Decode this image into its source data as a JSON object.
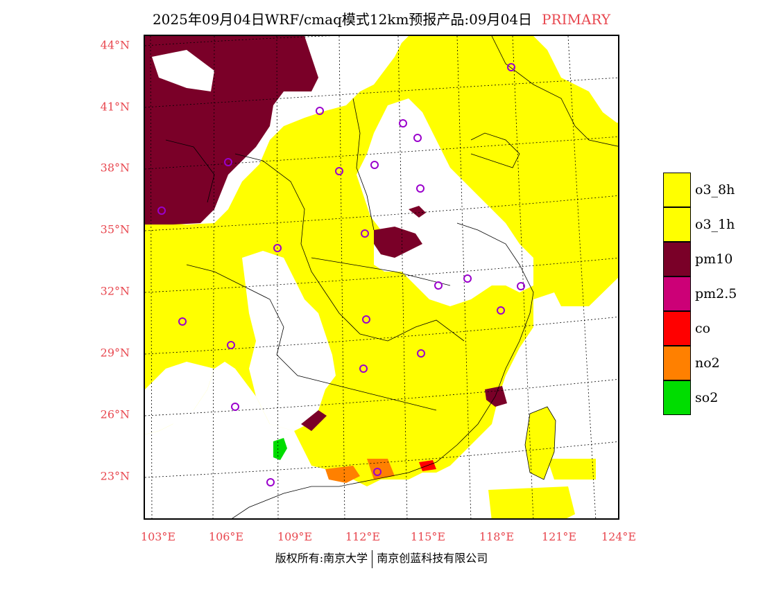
{
  "title": {
    "main": "2025年09月04日WRF/cmaq模式12km预报产品:09月04日",
    "tag": "PRIMARY"
  },
  "colors": {
    "o3_8h": "#ffff00",
    "o3_1h": "#ffff00",
    "pm10": "#7a0028",
    "pm2_5": "#cc0077",
    "co": "#ff0000",
    "no2": "#ff8000",
    "so2": "#00dd00",
    "axis_label": "#e8474f",
    "city_marker": "#9a00cc"
  },
  "legend": [
    {
      "label": "o3_8h",
      "color": "#ffff00"
    },
    {
      "label": "o3_1h",
      "color": "#ffff00"
    },
    {
      "label": "pm10",
      "color": "#7a0028"
    },
    {
      "label": "pm2.5",
      "color": "#cc0077"
    },
    {
      "label": "co",
      "color": "#ff0000"
    },
    {
      "label": "no2",
      "color": "#ff8000"
    },
    {
      "label": "so2",
      "color": "#00dd00"
    }
  ],
  "axes": {
    "lat_labels": [
      "44°N",
      "41°N",
      "38°N",
      "35°N",
      "32°N",
      "29°N",
      "26°N",
      "23°N"
    ],
    "lon_labels": [
      "103°E",
      "106°E",
      "109°E",
      "112°E",
      "115°E",
      "118°E",
      "121°E",
      "124°E"
    ]
  },
  "footer": {
    "left": "版权所有:南京大学",
    "right": "南京创蓝科技有限公司"
  }
}
